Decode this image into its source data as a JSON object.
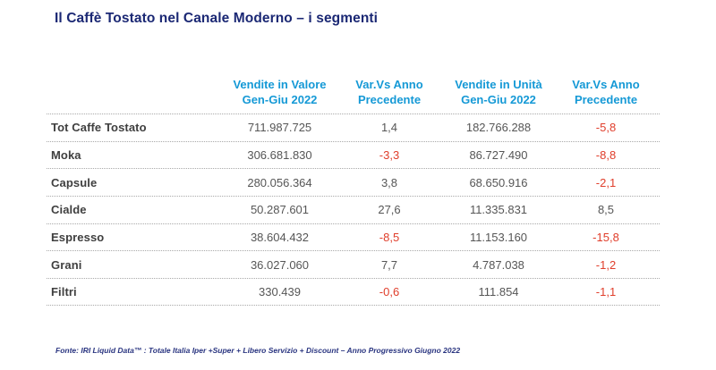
{
  "title": "Il Caffè Tostato nel Canale Moderno – i segmenti",
  "colors": {
    "title_navy": "#1B2874",
    "header_blue": "#1599D6",
    "negative_red": "#E03E2B",
    "value_gray": "#565656",
    "label_gray": "#3F3F3F",
    "divider_gray": "#A9A9A9"
  },
  "table": {
    "columns": [
      {
        "line1": "Vendite in Valore",
        "line2": "Gen-Giu 2022"
      },
      {
        "line1": "Var.Vs Anno",
        "line2": "Precedente"
      },
      {
        "line1": "Vendite in Unità",
        "line2": "Gen-Giu 2022"
      },
      {
        "line1": "Var.Vs Anno",
        "line2": "Precedente"
      }
    ],
    "rows": [
      {
        "label": "Tot Caffe Tostato",
        "values": [
          "711.987.725",
          "1,4",
          "182.766.288",
          "-5,8"
        ]
      },
      {
        "label": "Moka",
        "values": [
          "306.681.830",
          "-3,3",
          "86.727.490",
          "-8,8"
        ]
      },
      {
        "label": "Capsule",
        "values": [
          "280.056.364",
          "3,8",
          "68.650.916",
          "-2,1"
        ]
      },
      {
        "label": "Cialde",
        "values": [
          "50.287.601",
          "27,6",
          "11.335.831",
          "8,5"
        ]
      },
      {
        "label": "Espresso",
        "values": [
          "38.604.432",
          "-8,5",
          "11.153.160",
          "-15,8"
        ]
      },
      {
        "label": "Grani",
        "values": [
          "36.027.060",
          "7,7",
          "4.787.038",
          "-1,2"
        ]
      },
      {
        "label": "Filtri",
        "values": [
          "330.439",
          "-0,6",
          "111.854",
          "-1,1"
        ]
      }
    ]
  },
  "footer": {
    "source": "Fonte: IRI Liquid Data™ : Totale Italia Iper +Super +  Libero Servizio + Discount  – Anno Progressivo Giugno 2022"
  }
}
